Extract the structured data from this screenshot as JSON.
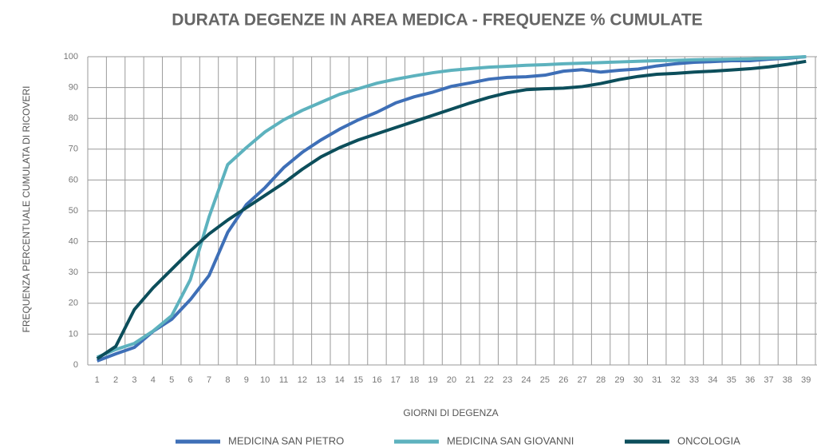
{
  "chart_data": {
    "type": "line",
    "title": "DURATA DEGENZE IN AREA MEDICA - FREQUENZE % CUMULATE",
    "x_label": "GIORNI DI DEGENZA",
    "y_label": "FREQUENZA PERCENTUALE CUMULATA DI RICOVERI",
    "categories": [
      1,
      2,
      3,
      4,
      5,
      6,
      7,
      8,
      9,
      10,
      11,
      12,
      13,
      14,
      15,
      16,
      17,
      18,
      19,
      20,
      21,
      22,
      23,
      24,
      25,
      26,
      27,
      28,
      29,
      30,
      31,
      32,
      33,
      34,
      35,
      36,
      37,
      38,
      39
    ],
    "ylim": [
      0,
      100
    ],
    "yticks": [
      0,
      10,
      20,
      30,
      40,
      50,
      60,
      70,
      80,
      90,
      100
    ],
    "grid": true,
    "legend": "bottom",
    "series": [
      {
        "name": "MEDICINA SAN PIETRO",
        "color": "#3e6fb7",
        "values": [
          1.3,
          3.6,
          5.7,
          10.9,
          14.8,
          21.2,
          29,
          43,
          52,
          57.5,
          64,
          69,
          73,
          76.5,
          79.5,
          82,
          85,
          87,
          88.5,
          90.4,
          91.5,
          92.7,
          93.3,
          93.5,
          94,
          95.3,
          95.8,
          95,
          95.6,
          96,
          97,
          97.7,
          98.2,
          98.4,
          98.7,
          98.7,
          99.2,
          99.5,
          100
        ]
      },
      {
        "name": "MEDICINA SAN GIOVANNI",
        "color": "#5db2be",
        "values": [
          2.5,
          5,
          7,
          11,
          16,
          27.7,
          48,
          65,
          70.5,
          75.6,
          79.5,
          82.6,
          85.2,
          87.8,
          89.6,
          91.4,
          92.7,
          93.8,
          94.8,
          95.6,
          96.1,
          96.6,
          96.9,
          97.2,
          97.4,
          97.7,
          97.9,
          98.1,
          98.3,
          98.5,
          98.7,
          98.8,
          99,
          99.1,
          99.2,
          99.3,
          99.5,
          99.7,
          100
        ]
      },
      {
        "name": "ONCOLOGIA",
        "color": "#0c4e5b",
        "values": [
          2,
          6,
          18,
          25,
          31,
          37,
          42.5,
          47,
          51,
          55,
          59,
          63.5,
          67.5,
          70.5,
          73,
          75,
          77,
          79,
          81,
          83,
          85,
          86.8,
          88.3,
          89.3,
          89.6,
          89.8,
          90.3,
          91.3,
          92.6,
          93.6,
          94.3,
          94.6,
          95,
          95.3,
          95.7,
          96.1,
          96.7,
          97.5,
          98.5
        ]
      }
    ]
  }
}
